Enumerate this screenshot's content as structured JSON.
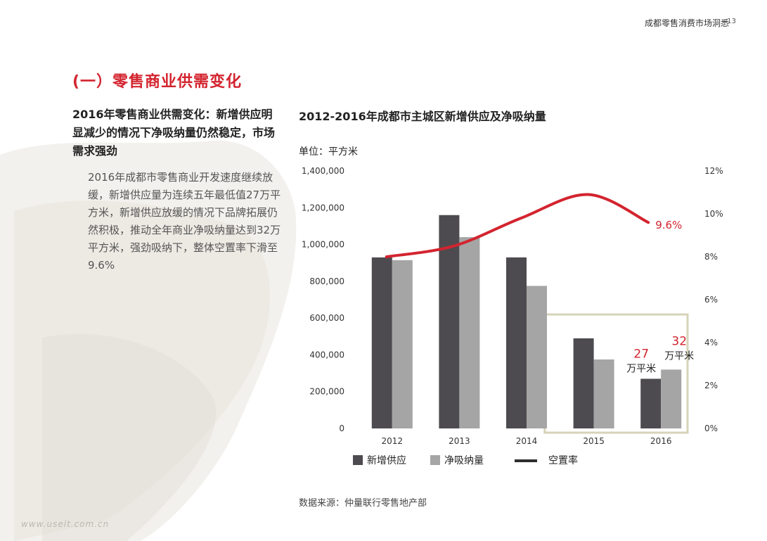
{
  "header": {
    "title": "成都零售消费市场洞悉",
    "page_number": "13"
  },
  "section": {
    "title": "(一）零售商业供需变化"
  },
  "left": {
    "heading": "2016年零售商业供需变化：新增供应明显减少的情况下净吸纳量仍然稳定，市场需求强劲",
    "body": "2016年成都市零售商业开发速度继续放缓，新增供应量为连续五年最低值27万平方米，新增供应放缓的情况下品牌拓展仍然积极，推动全年商业净吸纳量达到32万平方米，强劲吸纳下，整体空置率下滑至9.6%"
  },
  "chart_data": {
    "type": "bar",
    "title": "2012-2016年成都市主城区新增供应及净吸纳量",
    "unit_label": "单位：平方米",
    "categories": [
      "2012",
      "2013",
      "2014",
      "2015",
      "2016"
    ],
    "series": [
      {
        "name": "新增供应",
        "type": "bar",
        "color": "#4d4b4f",
        "values": [
          930000,
          1160000,
          930000,
          490000,
          270000
        ]
      },
      {
        "name": "净吸纳量",
        "type": "bar",
        "color": "#a5a5a5",
        "values": [
          915000,
          1040000,
          775000,
          375000,
          320000
        ]
      },
      {
        "name": "空置率",
        "type": "line",
        "axis": "right",
        "color": "#d3242f",
        "values": [
          8.0,
          8.5,
          9.8,
          10.9,
          9.6
        ]
      }
    ],
    "y_left": {
      "min": 0,
      "max": 1400000,
      "ticks": [
        "0",
        "200,000",
        "400,000",
        "600,000",
        "800,000",
        "1,000,000",
        "1,200,000",
        "1,400,000"
      ]
    },
    "y_right": {
      "min": 0,
      "max": 12,
      "ticks": [
        "0%",
        "2%",
        "4%",
        "6%",
        "8%",
        "10%",
        "12%"
      ]
    },
    "annotations": {
      "vacancy_end_label": "9.6%",
      "supply_2016_value": "27",
      "supply_2016_unit": "万平米",
      "absorption_2016_value": "32",
      "absorption_2016_unit": "万平米"
    },
    "legend": {
      "position": "bottom",
      "items": [
        "新增供应",
        "净吸纳量",
        "空置率"
      ]
    },
    "grid": false
  },
  "footer": {
    "source": "数据来源：仲量联行零售地产部",
    "watermark": "www.uselt.com.cn"
  }
}
